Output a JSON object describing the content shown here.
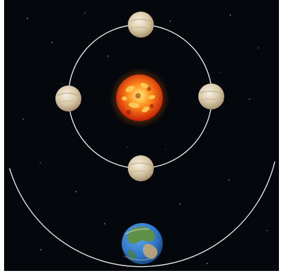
{
  "scene": {
    "background_color": "#04070c",
    "orbit_color": "#e8e8e8",
    "sun": {
      "icon": "sun-icon",
      "colors": [
        "#fff07a",
        "#ff8a1c",
        "#c71f05"
      ]
    },
    "venus": {
      "icon": "venus-icon",
      "phase_positions": [
        "top",
        "left",
        "right",
        "bottom"
      ],
      "colors": [
        "#f6f1e4",
        "#d9c8a8",
        "#9e8a68"
      ]
    },
    "earth": {
      "icon": "earth-icon",
      "colors": [
        "#2f78c8",
        "#1b4f8d",
        "#5f8f3e",
        "#c4a676"
      ]
    }
  }
}
